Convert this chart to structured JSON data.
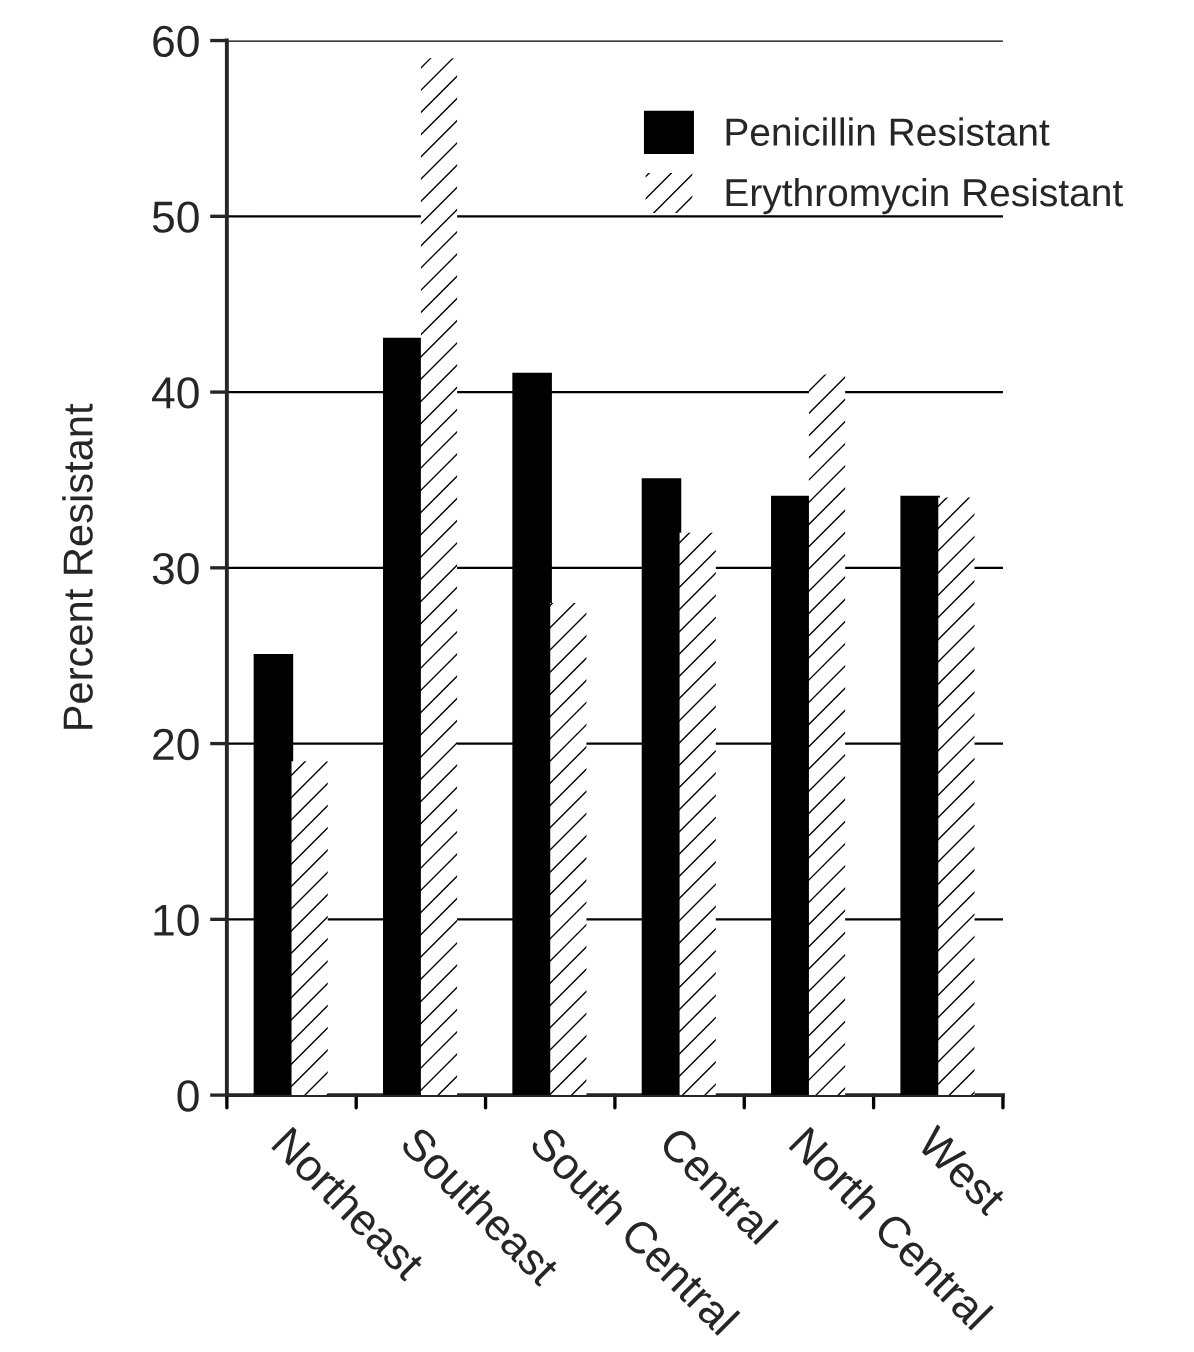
{
  "chart_data": {
    "type": "bar",
    "ylabel": "Percent Resistant",
    "categories": [
      "Northeast",
      "Southeast",
      "South Central",
      "Central",
      "North Central",
      "West"
    ],
    "series": [
      {
        "name": "Penicillin Resistant",
        "color": "#000000",
        "values": [
          25,
          43,
          41,
          35,
          34,
          34
        ]
      },
      {
        "name": "Erythromycin Resistant",
        "color": "#ffffff",
        "values": [
          19,
          59,
          28,
          32,
          41,
          34
        ]
      }
    ],
    "ylim": [
      0,
      60
    ],
    "yticks": [
      0,
      10,
      20,
      30,
      40,
      50,
      60
    ],
    "grid": "y",
    "legend": "top right"
  }
}
